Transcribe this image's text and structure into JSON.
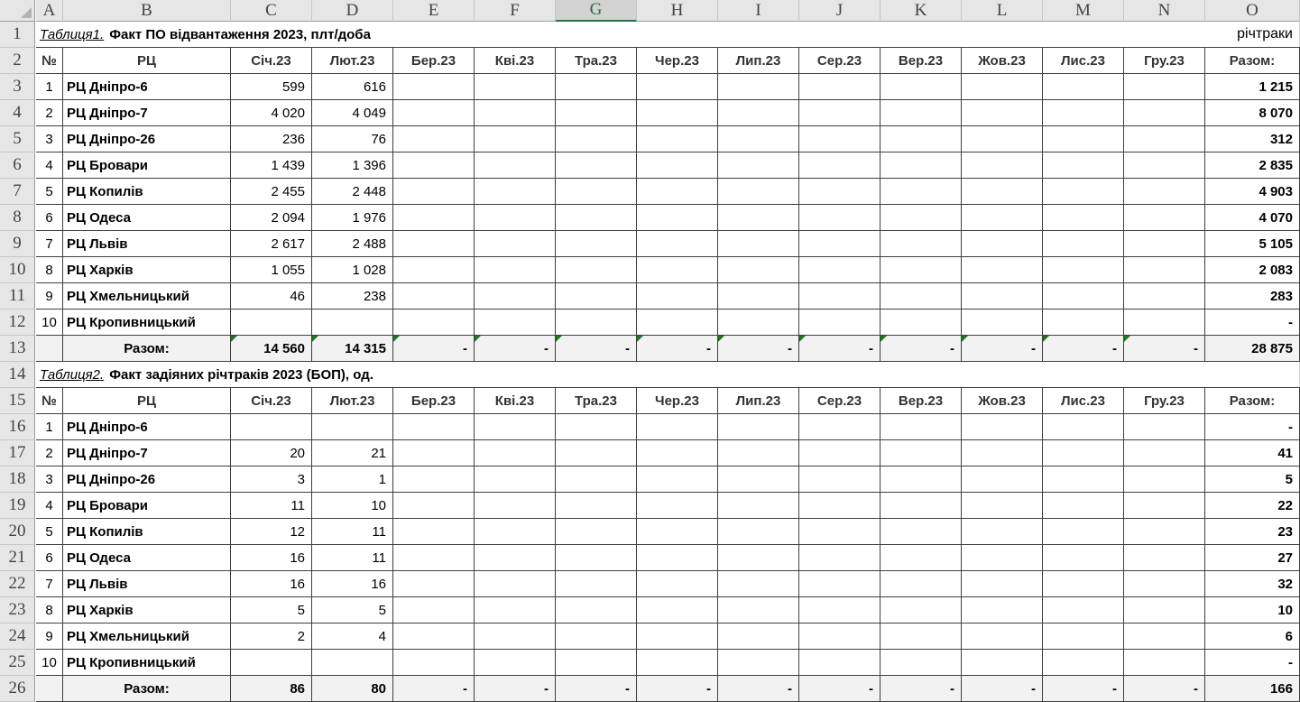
{
  "columns": [
    "A",
    "B",
    "C",
    "D",
    "E",
    "F",
    "G",
    "H",
    "I",
    "J",
    "K",
    "L",
    "M",
    "N",
    "O"
  ],
  "selected_column": "G",
  "units_label": "річтраки",
  "table1": {
    "caption": "Таблиця1.",
    "title": "Факт ПО відвантаження 2023, плт/доба",
    "headers": [
      "№",
      "РЦ",
      "Січ.23",
      "Лют.23",
      "Бер.23",
      "Кві.23",
      "Тра.23",
      "Чер.23",
      "Лип.23",
      "Сер.23",
      "Вер.23",
      "Жов.23",
      "Лис.23",
      "Гру.23",
      "Разом:"
    ],
    "rows": [
      [
        "1",
        "РЦ Дніпро-6",
        "599",
        "616",
        "",
        "",
        "",
        "",
        "",
        "",
        "",
        "",
        "",
        "",
        "1 215"
      ],
      [
        "2",
        "РЦ Дніпро-7",
        "4 020",
        "4 049",
        "",
        "",
        "",
        "",
        "",
        "",
        "",
        "",
        "",
        "",
        "8 070"
      ],
      [
        "3",
        "РЦ Дніпро-26",
        "236",
        "76",
        "",
        "",
        "",
        "",
        "",
        "",
        "",
        "",
        "",
        "",
        "312"
      ],
      [
        "4",
        "РЦ Бровари",
        "1 439",
        "1 396",
        "",
        "",
        "",
        "",
        "",
        "",
        "",
        "",
        "",
        "",
        "2 835"
      ],
      [
        "5",
        "РЦ Копилів",
        "2 455",
        "2 448",
        "",
        "",
        "",
        "",
        "",
        "",
        "",
        "",
        "",
        "",
        "4 903"
      ],
      [
        "6",
        "РЦ Одеса",
        "2 094",
        "1 976",
        "",
        "",
        "",
        "",
        "",
        "",
        "",
        "",
        "",
        "",
        "4 070"
      ],
      [
        "7",
        "РЦ Львів",
        "2 617",
        "2 488",
        "",
        "",
        "",
        "",
        "",
        "",
        "",
        "",
        "",
        "",
        "5 105"
      ],
      [
        "8",
        "РЦ Харків",
        "1 055",
        "1 028",
        "",
        "",
        "",
        "",
        "",
        "",
        "",
        "",
        "",
        "",
        "2 083"
      ],
      [
        "9",
        "РЦ Хмельницький",
        "46",
        "238",
        "",
        "",
        "",
        "",
        "",
        "",
        "",
        "",
        "",
        "",
        "283"
      ],
      [
        "10",
        "РЦ Кропивницький",
        "",
        "",
        "",
        "",
        "",
        "",
        "",
        "",
        "",
        "",
        "",
        "",
        "-"
      ]
    ],
    "total": [
      "",
      "Разом:",
      "14 560",
      "14 315",
      "-",
      "-",
      "-",
      "-",
      "-",
      "-",
      "-",
      "-",
      "-",
      "-",
      "28 875"
    ]
  },
  "table2": {
    "caption": "Таблиця2.",
    "title": "Факт задіяних річтраків 2023 (БОП), од.",
    "headers": [
      "№",
      "РЦ",
      "Січ.23",
      "Лют.23",
      "Бер.23",
      "Кві.23",
      "Тра.23",
      "Чер.23",
      "Лип.23",
      "Сер.23",
      "Вер.23",
      "Жов.23",
      "Лис.23",
      "Гру.23",
      "Разом:"
    ],
    "rows": [
      [
        "1",
        "РЦ Дніпро-6",
        "",
        "",
        "",
        "",
        "",
        "",
        "",
        "",
        "",
        "",
        "",
        "",
        "-"
      ],
      [
        "2",
        "РЦ Дніпро-7",
        "20",
        "21",
        "",
        "",
        "",
        "",
        "",
        "",
        "",
        "",
        "",
        "",
        "41"
      ],
      [
        "3",
        "РЦ Дніпро-26",
        "3",
        "1",
        "",
        "",
        "",
        "",
        "",
        "",
        "",
        "",
        "",
        "",
        "5"
      ],
      [
        "4",
        "РЦ Бровари",
        "11",
        "10",
        "",
        "",
        "",
        "",
        "",
        "",
        "",
        "",
        "",
        "",
        "22"
      ],
      [
        "5",
        "РЦ Копилів",
        "12",
        "11",
        "",
        "",
        "",
        "",
        "",
        "",
        "",
        "",
        "",
        "",
        "23"
      ],
      [
        "6",
        "РЦ Одеса",
        "16",
        "11",
        "",
        "",
        "",
        "",
        "",
        "",
        "",
        "",
        "",
        "",
        "27"
      ],
      [
        "7",
        "РЦ Львів",
        "16",
        "16",
        "",
        "",
        "",
        "",
        "",
        "",
        "",
        "",
        "",
        "",
        "32"
      ],
      [
        "8",
        "РЦ Харків",
        "5",
        "5",
        "",
        "",
        "",
        "",
        "",
        "",
        "",
        "",
        "",
        "",
        "10"
      ],
      [
        "9",
        "РЦ Хмельницький",
        "2",
        "4",
        "",
        "",
        "",
        "",
        "",
        "",
        "",
        "",
        "",
        "",
        "6"
      ],
      [
        "10",
        "РЦ Кропивницький",
        "",
        "",
        "",
        "",
        "",
        "",
        "",
        "",
        "",
        "",
        "",
        "",
        "-"
      ]
    ],
    "total": [
      "",
      "Разом:",
      "86",
      "80",
      "-",
      "-",
      "-",
      "-",
      "-",
      "-",
      "-",
      "-",
      "-",
      "-",
      "166"
    ]
  },
  "row_numbers": [
    "1",
    "2",
    "3",
    "4",
    "5",
    "6",
    "7",
    "8",
    "9",
    "10",
    "11",
    "12",
    "13",
    "14",
    "15",
    "16",
    "17",
    "18",
    "19",
    "20",
    "21",
    "22",
    "23",
    "24",
    "25",
    "26"
  ]
}
